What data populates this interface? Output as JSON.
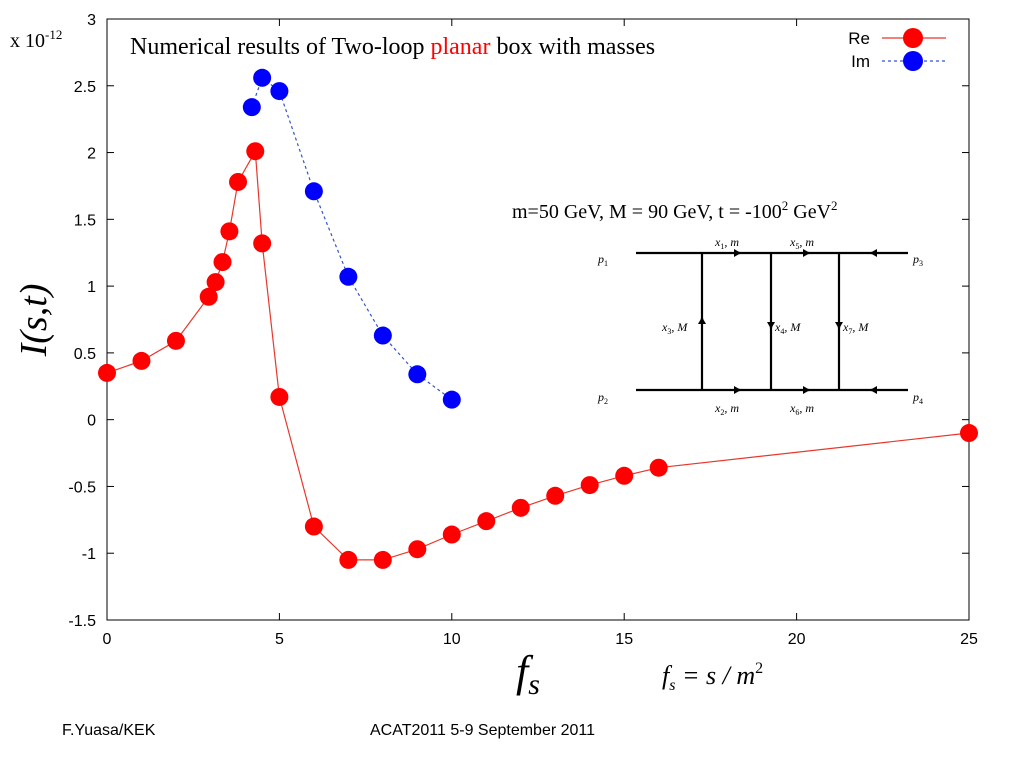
{
  "slide": {
    "scale_prefix": "x 10",
    "scale_exponent": "-12",
    "footer_left": "F.Yuasa/KEK",
    "footer_center": "ACAT2011 5-9 September  2011"
  },
  "diagram": {
    "params_text": "m=50 GeV,  M = 90 GeV,  t = -100",
    "params_sup": "2",
    "params_unit": " GeV",
    "params_unit_sup": "2",
    "labels": {
      "p1": "p",
      "p1_sub": "1",
      "p2": "p",
      "p2_sub": "2",
      "p3": "p",
      "p3_sub": "3",
      "p4": "p",
      "p4_sub": "4",
      "x1": "x",
      "x1_sub": "1",
      "x1_mass": ", m",
      "x2": "x",
      "x2_sub": "2",
      "x2_mass": ", m",
      "x3": "x",
      "x3_sub": "3",
      "x3_mass": ", M",
      "x4": "x",
      "x4_sub": "4",
      "x4_mass": ", M",
      "x5": "x",
      "x5_sub": "5",
      "x5_mass": ", m",
      "x6": "x",
      "x6_sub": "6",
      "x6_mass": ", m",
      "x7": "x",
      "x7_sub": "7",
      "x7_mass": ", M"
    }
  },
  "colors": {
    "re": "#ff0000",
    "im": "#0000ff",
    "re_line": "#e8382c",
    "im_line": "#3355cc",
    "title_accent": "#ff0000"
  },
  "chart_data": {
    "type": "line",
    "title_parts": [
      "Numerical results of Two-loop ",
      "planar",
      " box with masses"
    ],
    "xlabel": "f",
    "xlabel_sub": "s",
    "x_formula": "f",
    "x_formula_sub": "s",
    "x_formula_rest": " = s / m",
    "x_formula_sup": "2",
    "ylabel": "I(s,t)",
    "xlim": [
      0,
      25
    ],
    "ylim": [
      -1.5,
      3
    ],
    "xticks": [
      "0",
      "5",
      "10",
      "15",
      "20",
      "25"
    ],
    "yticks": [
      "-1.5",
      "-1",
      "-0.5",
      "0",
      "0.5",
      "1",
      "1.5",
      "2",
      "2.5",
      "3"
    ],
    "grid": false,
    "legend_position": "top-right",
    "series": [
      {
        "name": "Re",
        "style": "solid",
        "x": [
          0,
          1,
          2,
          2.95,
          3.15,
          3.35,
          3.55,
          3.8,
          4.3,
          4.5,
          5,
          6,
          7,
          8,
          9,
          10,
          11,
          12,
          13,
          14,
          15,
          16,
          25
        ],
        "y": [
          0.35,
          0.44,
          0.59,
          0.92,
          1.03,
          1.18,
          1.41,
          1.78,
          2.01,
          1.32,
          0.17,
          -0.8,
          -1.05,
          -1.05,
          -0.97,
          -0.86,
          -0.76,
          -0.66,
          -0.57,
          -0.49,
          -0.42,
          -0.36,
          -0.1
        ]
      },
      {
        "name": "Im",
        "style": "dashed",
        "x": [
          4.2,
          4.5,
          5,
          6,
          7,
          8,
          9,
          10
        ],
        "y": [
          2.34,
          2.56,
          2.46,
          1.71,
          1.07,
          0.63,
          0.34,
          0.15
        ]
      }
    ]
  }
}
